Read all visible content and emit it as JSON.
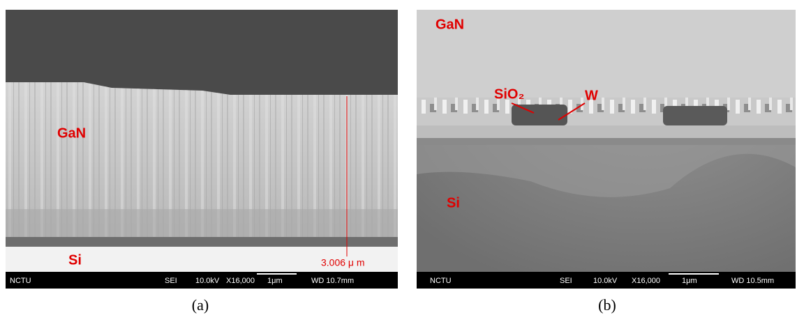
{
  "panels": [
    {
      "caption": "(a)",
      "labels": {
        "top": "GaN",
        "bottom": "Si",
        "measure": "3.006 μ m"
      },
      "info_bar": [
        "NCTU",
        "SEI",
        "10.0kV",
        "X16,000",
        "1μm",
        "WD 10.7mm"
      ]
    },
    {
      "caption": "(b)",
      "labels": {
        "top": "GaN",
        "oxide": "SiO₂",
        "metal": "W",
        "bottom": "Si"
      },
      "info_bar": [
        "NCTU",
        "SEI",
        "10.0kV",
        "X16,000",
        "1μm",
        "WD 10.5mm"
      ]
    }
  ]
}
